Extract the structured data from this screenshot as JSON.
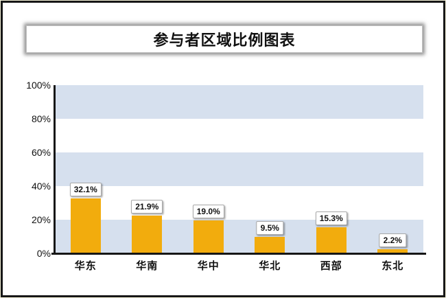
{
  "chart_data": {
    "type": "bar",
    "title": "参与者区域比例图表",
    "categories": [
      "华东",
      "华南",
      "华中",
      "华北",
      "西部",
      "东北"
    ],
    "values": [
      32.1,
      21.9,
      19.0,
      9.5,
      15.3,
      2.2
    ],
    "value_labels": [
      "32.1%",
      "21.9%",
      "19.0%",
      "9.5%",
      "15.3%",
      "2.2%"
    ],
    "y_ticks": [
      "0%",
      "20%",
      "40%",
      "60%",
      "80%",
      "100%"
    ],
    "ylim": [
      0,
      100
    ],
    "xlabel": "",
    "ylabel": "",
    "legend": "none",
    "grid": "alternating-horizontal-bands",
    "colors": {
      "bar": "#F2AC0D",
      "band": "#D6E0EE",
      "band_alt": "#FFFFFF",
      "axis": "#161616",
      "value_box_bg": "#FFFFFF",
      "value_box_border": "#A8A8A8",
      "frame_border": "#161616"
    }
  }
}
